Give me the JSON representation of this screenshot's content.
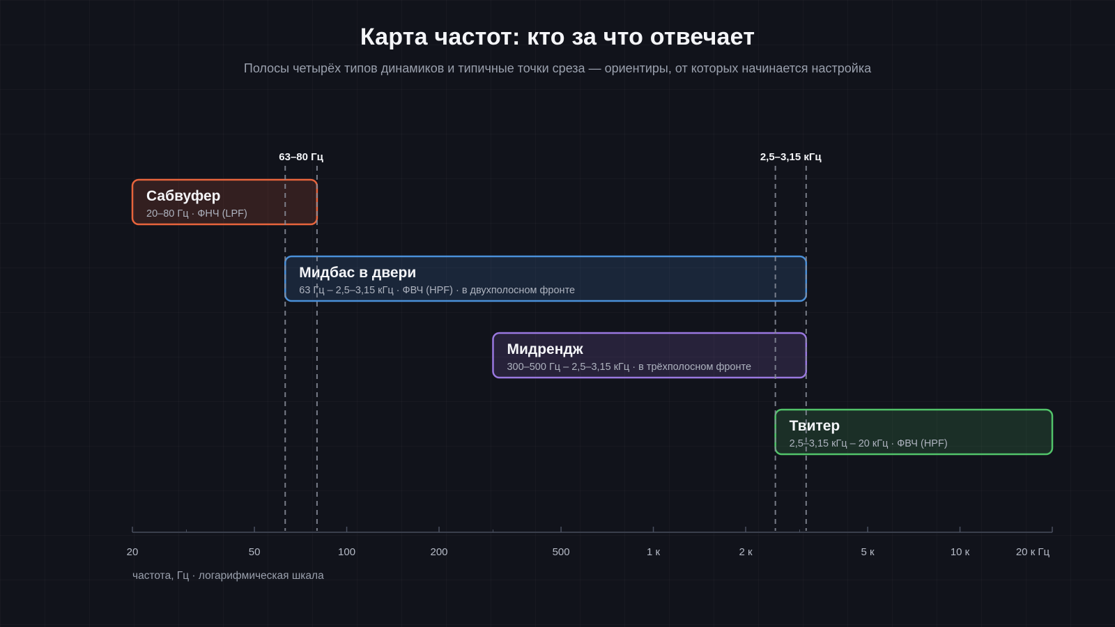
{
  "header": {
    "title": "Карта частот: кто за что отвечает",
    "subtitle": "Полосы четырёх типов динамиков и типичные точки среза — ориентиры, от которых начинается настройка"
  },
  "axis": {
    "caption": "частота, Гц · логарифмическая шкала"
  },
  "chart_data": {
    "type": "range-bar",
    "x_scale": "log",
    "xlim": [
      20,
      20000
    ],
    "xlabel": "частота, Гц · логарифмическая шкала",
    "major_ticks": [
      {
        "value": 20,
        "label": "20"
      },
      {
        "value": 50,
        "label": "50"
      },
      {
        "value": 100,
        "label": "100"
      },
      {
        "value": 200,
        "label": "200"
      },
      {
        "value": 500,
        "label": "500"
      },
      {
        "value": 1000,
        "label": "1 к"
      },
      {
        "value": 2000,
        "label": "2 к"
      },
      {
        "value": 5000,
        "label": "5 к"
      },
      {
        "value": 10000,
        "label": "10 к"
      },
      {
        "value": 20000,
        "label": "20 к Гц"
      }
    ],
    "minor_ticks": [
      30,
      300,
      3000
    ],
    "bands": [
      {
        "name": "Сабвуфер",
        "description": "20–80 Гц · ФНЧ (LPF)",
        "start": 20,
        "end": 80,
        "color": "#e8643c"
      },
      {
        "name": "Мидбас в двери",
        "description": "63 Гц – 2,5–3,15 кГц · ФВЧ (HPF) · в двухполосном фронте",
        "start": 63,
        "end": 3150,
        "color": "#4a90d9"
      },
      {
        "name": "Мидрендж",
        "description": "300–500 Гц – 2,5–3,15 кГц · в трёхполосном фронте",
        "start": 300,
        "end": 3150,
        "color": "#9a78e0"
      },
      {
        "name": "Твитер",
        "description": "2,5–3,15 кГц – 20 кГц · ФВЧ (HPF)",
        "start": 2500,
        "end": 20000,
        "color": "#52c46a"
      }
    ],
    "cutoffs": [
      {
        "label": "63–80 Гц",
        "values": [
          63,
          80
        ]
      },
      {
        "label": "2,5–3,15 кГц",
        "values": [
          2500,
          3150
        ]
      }
    ]
  }
}
